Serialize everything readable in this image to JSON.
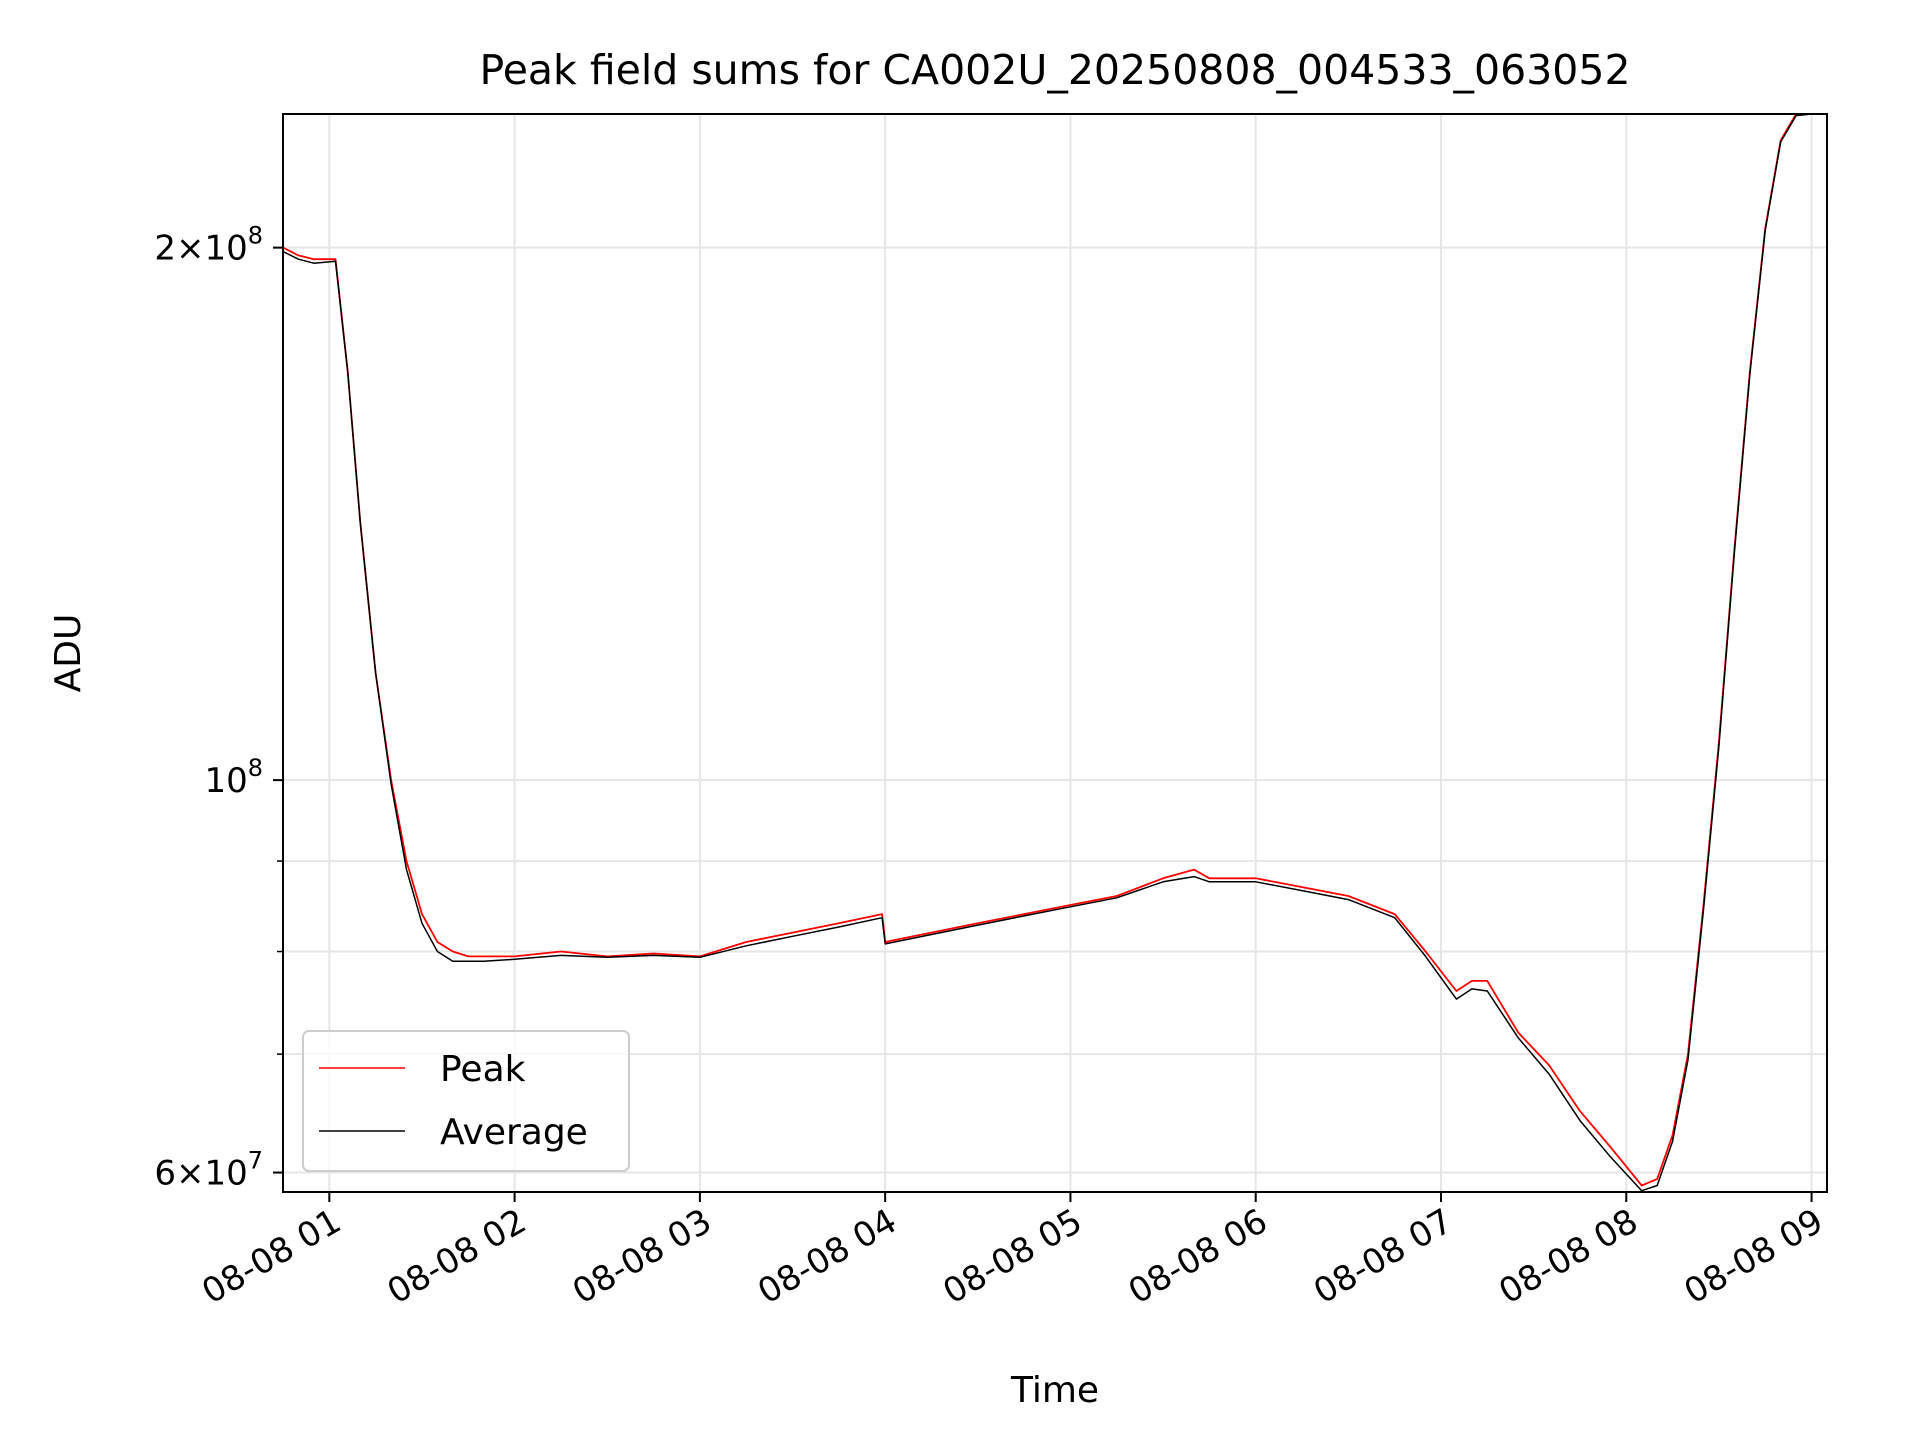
{
  "chart_data": {
    "type": "line",
    "title": "Peak field sums for CA002U_20250808_004533_063052",
    "xlabel": "Time",
    "ylabel": "ADU",
    "yscale": "log",
    "xlim": [
      "2025-08-08 00:45",
      "2025-08-08 09:05"
    ],
    "ylim": [
      58500000,
      238000000
    ],
    "grid": true,
    "legend_position": "lower-left",
    "x_ticks": [
      {
        "value": "2025-08-08 01:00",
        "label": "08-08 01"
      },
      {
        "value": "2025-08-08 02:00",
        "label": "08-08 02"
      },
      {
        "value": "2025-08-08 03:00",
        "label": "08-08 03"
      },
      {
        "value": "2025-08-08 04:00",
        "label": "08-08 04"
      },
      {
        "value": "2025-08-08 05:00",
        "label": "08-08 05"
      },
      {
        "value": "2025-08-08 06:00",
        "label": "08-08 06"
      },
      {
        "value": "2025-08-08 07:00",
        "label": "08-08 07"
      },
      {
        "value": "2025-08-08 08:00",
        "label": "08-08 08"
      },
      {
        "value": "2025-08-08 09:00",
        "label": "08-08 09"
      }
    ],
    "y_major_ticks": [
      {
        "value": 60000000,
        "label_mantissa": "6",
        "label_base": "10",
        "label_exp": "7"
      },
      {
        "value": 100000000,
        "label_mantissa": "",
        "label_base": "10",
        "label_exp": "8"
      },
      {
        "value": 200000000,
        "label_mantissa": "2",
        "label_base": "10",
        "label_exp": "8"
      }
    ],
    "y_minor_ticks": [
      70000000,
      80000000,
      90000000
    ],
    "x": [
      "2025-08-08 00:45",
      "2025-08-08 00:50",
      "2025-08-08 00:55",
      "2025-08-08 01:02",
      "2025-08-08 01:06",
      "2025-08-08 01:10",
      "2025-08-08 01:15",
      "2025-08-08 01:20",
      "2025-08-08 01:25",
      "2025-08-08 01:30",
      "2025-08-08 01:35",
      "2025-08-08 01:40",
      "2025-08-08 01:45",
      "2025-08-08 01:50",
      "2025-08-08 02:00",
      "2025-08-08 02:15",
      "2025-08-08 02:30",
      "2025-08-08 02:45",
      "2025-08-08 03:00",
      "2025-08-08 03:15",
      "2025-08-08 03:30",
      "2025-08-08 03:45",
      "2025-08-08 03:59",
      "2025-08-08 04:00",
      "2025-08-08 04:15",
      "2025-08-08 04:30",
      "2025-08-08 04:45",
      "2025-08-08 05:00",
      "2025-08-08 05:15",
      "2025-08-08 05:30",
      "2025-08-08 05:40",
      "2025-08-08 05:45",
      "2025-08-08 06:00",
      "2025-08-08 06:15",
      "2025-08-08 06:30",
      "2025-08-08 06:45",
      "2025-08-08 06:55",
      "2025-08-08 07:05",
      "2025-08-08 07:10",
      "2025-08-08 07:15",
      "2025-08-08 07:25",
      "2025-08-08 07:35",
      "2025-08-08 07:45",
      "2025-08-08 07:55",
      "2025-08-08 08:05",
      "2025-08-08 08:10",
      "2025-08-08 08:15",
      "2025-08-08 08:20",
      "2025-08-08 08:25",
      "2025-08-08 08:30",
      "2025-08-08 08:35",
      "2025-08-08 08:40",
      "2025-08-08 08:45",
      "2025-08-08 08:50",
      "2025-08-08 08:55",
      "2025-08-08 09:00",
      "2025-08-08 09:05"
    ],
    "series": [
      {
        "name": "Peak",
        "color": "#ff0000",
        "values": [
          200000000,
          198000000,
          197000000,
          197000000,
          170000000,
          140000000,
          115000000,
          100000000,
          90000000,
          84000000,
          81000000,
          80000000,
          79500000,
          79500000,
          79500000,
          80000000,
          79500000,
          79800000,
          79500000,
          81000000,
          82000000,
          83000000,
          84000000,
          81000000,
          82000000,
          83000000,
          84000000,
          85000000,
          86000000,
          88000000,
          89000000,
          88000000,
          88000000,
          87000000,
          86000000,
          84000000,
          80000000,
          76000000,
          77000000,
          77000000,
          72000000,
          69000000,
          65000000,
          62000000,
          59000000,
          59500000,
          63000000,
          70000000,
          85000000,
          105000000,
          135000000,
          170000000,
          205000000,
          230000000,
          238000000,
          238000000,
          238000000
        ]
      },
      {
        "name": "Average",
        "color": "#000000",
        "values": [
          199000000,
          197000000,
          196000000,
          196500000,
          170000000,
          140000000,
          115000000,
          99500000,
          89000000,
          83000000,
          80000000,
          79000000,
          79000000,
          79000000,
          79200000,
          79600000,
          79400000,
          79600000,
          79400000,
          80600000,
          81600000,
          82600000,
          83600000,
          80800000,
          81800000,
          82800000,
          83800000,
          84800000,
          85800000,
          87600000,
          88200000,
          87600000,
          87600000,
          86600000,
          85600000,
          83600000,
          79500000,
          75200000,
          76200000,
          76000000,
          71500000,
          68200000,
          64200000,
          61200000,
          58600000,
          59000000,
          62500000,
          69500000,
          84500000,
          104500000,
          134500000,
          169500000,
          204500000,
          229500000,
          237500000,
          238000000,
          238000000
        ]
      }
    ]
  }
}
